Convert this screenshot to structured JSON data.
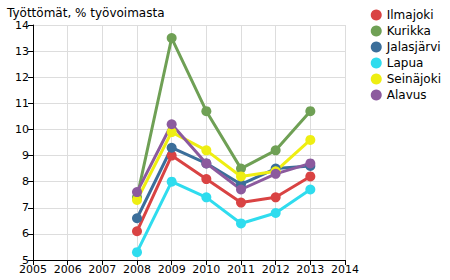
{
  "chart_data": {
    "type": "line",
    "title": "Työttömät, % työvoimasta",
    "x": [
      2008,
      2009,
      2010,
      2011,
      2012,
      2013
    ],
    "series": [
      {
        "name": "Ilmajoki",
        "color": "#d94343",
        "values": [
          6.1,
          9.0,
          8.1,
          7.2,
          7.4,
          8.2
        ]
      },
      {
        "name": "Kurikka",
        "color": "#6fa055",
        "values": [
          7.4,
          13.5,
          10.7,
          8.5,
          9.2,
          10.7
        ]
      },
      {
        "name": "Jalasjärvi",
        "color": "#3b6e9a",
        "values": [
          6.6,
          9.3,
          8.7,
          7.9,
          8.5,
          8.6
        ]
      },
      {
        "name": "Lapua",
        "color": "#2fdcee",
        "values": [
          5.3,
          8.0,
          7.4,
          6.4,
          6.8,
          7.7
        ]
      },
      {
        "name": "Seinäjoki",
        "color": "#eeee12",
        "values": [
          7.3,
          9.9,
          9.2,
          8.2,
          8.4,
          9.6
        ]
      },
      {
        "name": "Alavus",
        "color": "#8c5a9e",
        "values": [
          7.6,
          10.2,
          8.7,
          7.7,
          8.3,
          8.7
        ]
      }
    ],
    "xlim": [
      2005,
      2014
    ],
    "xticks": [
      2005,
      2006,
      2007,
      2008,
      2009,
      2010,
      2011,
      2012,
      2013,
      2014
    ],
    "ylim": [
      5,
      14
    ],
    "yticks": [
      5,
      6,
      7,
      8,
      9,
      10,
      11,
      12,
      13,
      14
    ],
    "grid": true,
    "legend": "top-right",
    "marker": "circle"
  }
}
